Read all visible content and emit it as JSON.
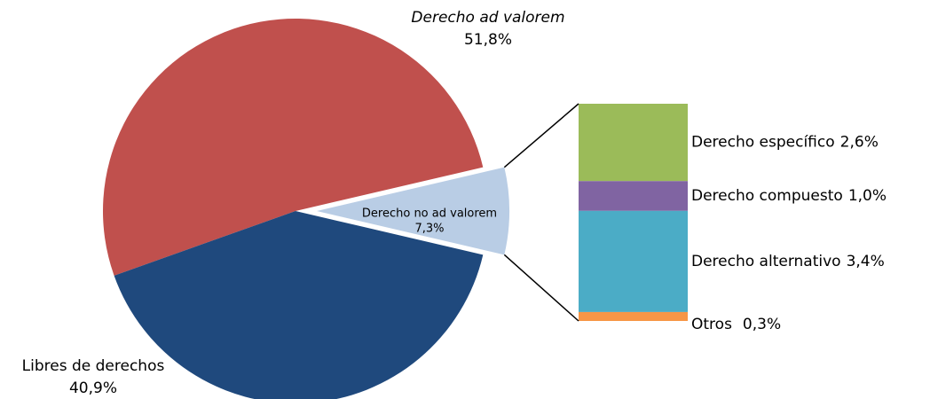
{
  "chart_data": {
    "type": "pie",
    "categories": [
      "Derecho ad valorem",
      "Derecho no ad valorem",
      "Libres de derechos"
    ],
    "values": [
      51.8,
      7.3,
      40.9
    ],
    "value_labels": [
      "51,8%",
      "7,3%",
      "40,9%"
    ],
    "colors": [
      "#c0504d",
      "#b9cde5",
      "#1f497d"
    ],
    "exploded": 1,
    "breakdown": {
      "categories": [
        "Derecho específico",
        "Derecho compuesto",
        "Derecho alternativo",
        "Otros"
      ],
      "values": [
        2.6,
        1.0,
        3.4,
        0.3
      ],
      "value_labels": [
        "2,6%",
        "1,0%",
        "3,4%",
        "0,3%"
      ],
      "colors": [
        "#9bbb59",
        "#8064a2",
        "#4bacc6",
        "#f79646"
      ]
    }
  }
}
